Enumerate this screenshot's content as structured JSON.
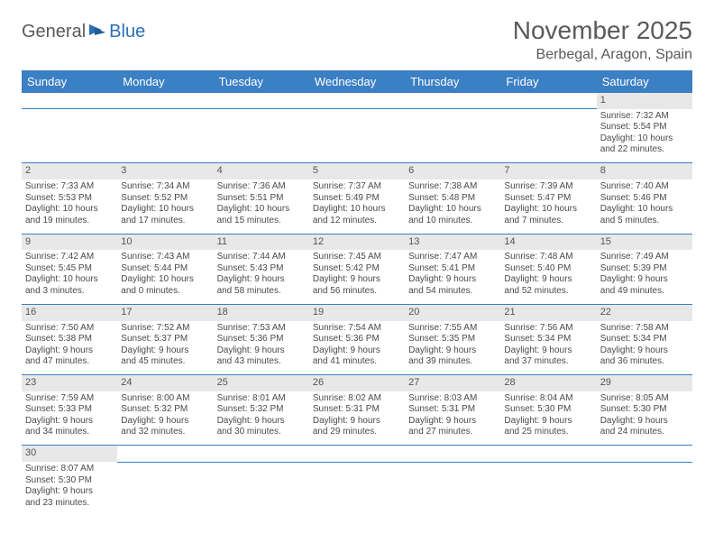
{
  "logo": {
    "text1": "General",
    "text2": "Blue"
  },
  "title": "November 2025",
  "location": "Berbegal, Aragon, Spain",
  "colors": {
    "header_bg": "#3b7fc4",
    "header_text": "#ffffff",
    "daynum_bg": "#e8e8e8",
    "border": "#3b7fc4",
    "logo_gray": "#5a5a5a",
    "logo_blue": "#2d6fb5"
  },
  "weekdays": [
    "Sunday",
    "Monday",
    "Tuesday",
    "Wednesday",
    "Thursday",
    "Friday",
    "Saturday"
  ],
  "weeks": [
    {
      "days": [
        null,
        null,
        null,
        null,
        null,
        null,
        {
          "n": "1",
          "sr": "Sunrise: 7:32 AM",
          "ss": "Sunset: 5:54 PM",
          "dl1": "Daylight: 10 hours",
          "dl2": "and 22 minutes."
        }
      ]
    },
    {
      "days": [
        {
          "n": "2",
          "sr": "Sunrise: 7:33 AM",
          "ss": "Sunset: 5:53 PM",
          "dl1": "Daylight: 10 hours",
          "dl2": "and 19 minutes."
        },
        {
          "n": "3",
          "sr": "Sunrise: 7:34 AM",
          "ss": "Sunset: 5:52 PM",
          "dl1": "Daylight: 10 hours",
          "dl2": "and 17 minutes."
        },
        {
          "n": "4",
          "sr": "Sunrise: 7:36 AM",
          "ss": "Sunset: 5:51 PM",
          "dl1": "Daylight: 10 hours",
          "dl2": "and 15 minutes."
        },
        {
          "n": "5",
          "sr": "Sunrise: 7:37 AM",
          "ss": "Sunset: 5:49 PM",
          "dl1": "Daylight: 10 hours",
          "dl2": "and 12 minutes."
        },
        {
          "n": "6",
          "sr": "Sunrise: 7:38 AM",
          "ss": "Sunset: 5:48 PM",
          "dl1": "Daylight: 10 hours",
          "dl2": "and 10 minutes."
        },
        {
          "n": "7",
          "sr": "Sunrise: 7:39 AM",
          "ss": "Sunset: 5:47 PM",
          "dl1": "Daylight: 10 hours",
          "dl2": "and 7 minutes."
        },
        {
          "n": "8",
          "sr": "Sunrise: 7:40 AM",
          "ss": "Sunset: 5:46 PM",
          "dl1": "Daylight: 10 hours",
          "dl2": "and 5 minutes."
        }
      ]
    },
    {
      "days": [
        {
          "n": "9",
          "sr": "Sunrise: 7:42 AM",
          "ss": "Sunset: 5:45 PM",
          "dl1": "Daylight: 10 hours",
          "dl2": "and 3 minutes."
        },
        {
          "n": "10",
          "sr": "Sunrise: 7:43 AM",
          "ss": "Sunset: 5:44 PM",
          "dl1": "Daylight: 10 hours",
          "dl2": "and 0 minutes."
        },
        {
          "n": "11",
          "sr": "Sunrise: 7:44 AM",
          "ss": "Sunset: 5:43 PM",
          "dl1": "Daylight: 9 hours",
          "dl2": "and 58 minutes."
        },
        {
          "n": "12",
          "sr": "Sunrise: 7:45 AM",
          "ss": "Sunset: 5:42 PM",
          "dl1": "Daylight: 9 hours",
          "dl2": "and 56 minutes."
        },
        {
          "n": "13",
          "sr": "Sunrise: 7:47 AM",
          "ss": "Sunset: 5:41 PM",
          "dl1": "Daylight: 9 hours",
          "dl2": "and 54 minutes."
        },
        {
          "n": "14",
          "sr": "Sunrise: 7:48 AM",
          "ss": "Sunset: 5:40 PM",
          "dl1": "Daylight: 9 hours",
          "dl2": "and 52 minutes."
        },
        {
          "n": "15",
          "sr": "Sunrise: 7:49 AM",
          "ss": "Sunset: 5:39 PM",
          "dl1": "Daylight: 9 hours",
          "dl2": "and 49 minutes."
        }
      ]
    },
    {
      "days": [
        {
          "n": "16",
          "sr": "Sunrise: 7:50 AM",
          "ss": "Sunset: 5:38 PM",
          "dl1": "Daylight: 9 hours",
          "dl2": "and 47 minutes."
        },
        {
          "n": "17",
          "sr": "Sunrise: 7:52 AM",
          "ss": "Sunset: 5:37 PM",
          "dl1": "Daylight: 9 hours",
          "dl2": "and 45 minutes."
        },
        {
          "n": "18",
          "sr": "Sunrise: 7:53 AM",
          "ss": "Sunset: 5:36 PM",
          "dl1": "Daylight: 9 hours",
          "dl2": "and 43 minutes."
        },
        {
          "n": "19",
          "sr": "Sunrise: 7:54 AM",
          "ss": "Sunset: 5:36 PM",
          "dl1": "Daylight: 9 hours",
          "dl2": "and 41 minutes."
        },
        {
          "n": "20",
          "sr": "Sunrise: 7:55 AM",
          "ss": "Sunset: 5:35 PM",
          "dl1": "Daylight: 9 hours",
          "dl2": "and 39 minutes."
        },
        {
          "n": "21",
          "sr": "Sunrise: 7:56 AM",
          "ss": "Sunset: 5:34 PM",
          "dl1": "Daylight: 9 hours",
          "dl2": "and 37 minutes."
        },
        {
          "n": "22",
          "sr": "Sunrise: 7:58 AM",
          "ss": "Sunset: 5:34 PM",
          "dl1": "Daylight: 9 hours",
          "dl2": "and 36 minutes."
        }
      ]
    },
    {
      "days": [
        {
          "n": "23",
          "sr": "Sunrise: 7:59 AM",
          "ss": "Sunset: 5:33 PM",
          "dl1": "Daylight: 9 hours",
          "dl2": "and 34 minutes."
        },
        {
          "n": "24",
          "sr": "Sunrise: 8:00 AM",
          "ss": "Sunset: 5:32 PM",
          "dl1": "Daylight: 9 hours",
          "dl2": "and 32 minutes."
        },
        {
          "n": "25",
          "sr": "Sunrise: 8:01 AM",
          "ss": "Sunset: 5:32 PM",
          "dl1": "Daylight: 9 hours",
          "dl2": "and 30 minutes."
        },
        {
          "n": "26",
          "sr": "Sunrise: 8:02 AM",
          "ss": "Sunset: 5:31 PM",
          "dl1": "Daylight: 9 hours",
          "dl2": "and 29 minutes."
        },
        {
          "n": "27",
          "sr": "Sunrise: 8:03 AM",
          "ss": "Sunset: 5:31 PM",
          "dl1": "Daylight: 9 hours",
          "dl2": "and 27 minutes."
        },
        {
          "n": "28",
          "sr": "Sunrise: 8:04 AM",
          "ss": "Sunset: 5:30 PM",
          "dl1": "Daylight: 9 hours",
          "dl2": "and 25 minutes."
        },
        {
          "n": "29",
          "sr": "Sunrise: 8:05 AM",
          "ss": "Sunset: 5:30 PM",
          "dl1": "Daylight: 9 hours",
          "dl2": "and 24 minutes."
        }
      ]
    },
    {
      "last": true,
      "days": [
        {
          "n": "30",
          "sr": "Sunrise: 8:07 AM",
          "ss": "Sunset: 5:30 PM",
          "dl1": "Daylight: 9 hours",
          "dl2": "and 23 minutes."
        },
        null,
        null,
        null,
        null,
        null,
        null
      ]
    }
  ]
}
